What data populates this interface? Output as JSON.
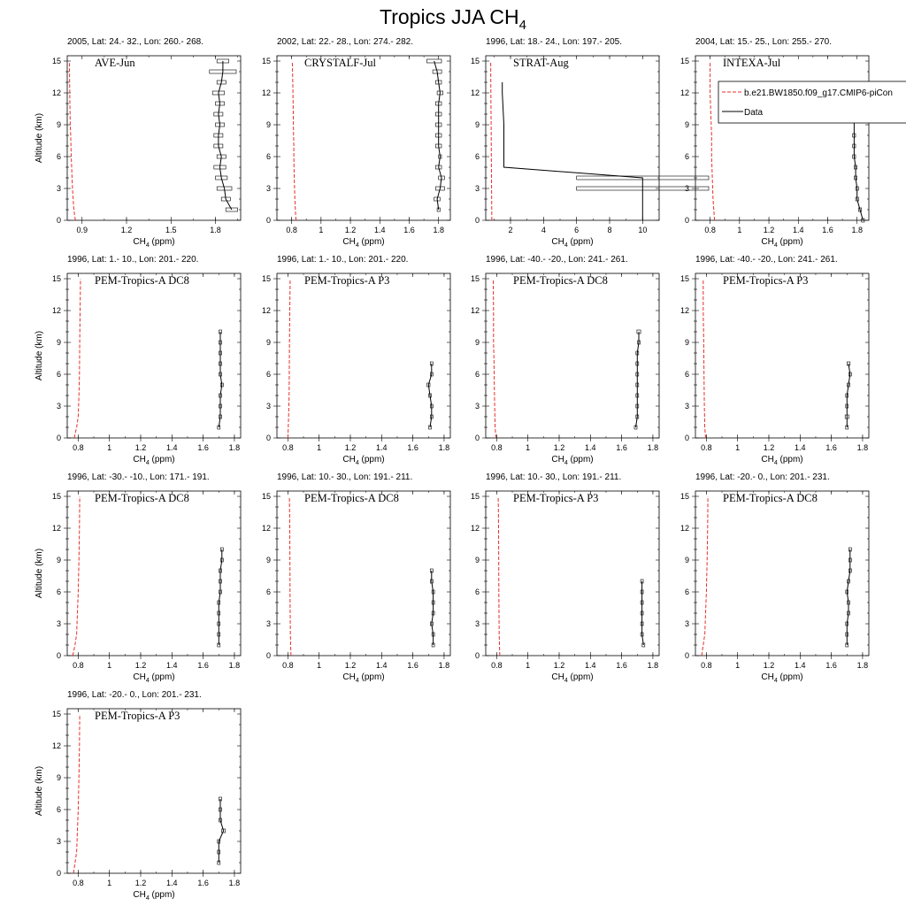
{
  "figure": {
    "title_main": "Tropics JJA CH",
    "title_sub": "4",
    "x_label_main": "CH",
    "x_label_sub": "4",
    "x_label_unit": " (ppm)",
    "y_label": "Altitude (km)",
    "model_color": "#e8302a",
    "data_color": "#000000"
  },
  "legend": {
    "model_label": "b.e21.BW1850.f09_g17.CMIP6-piCon",
    "data_label": "Data"
  },
  "chart_data": [
    {
      "type": "line",
      "header": "2005, Lat: 24.- 32., Lon: 260.- 268.",
      "campaign": "AVE-Jun",
      "xlim": [
        0.8,
        1.97
      ],
      "xticks": [
        0.9,
        1.2,
        1.5,
        1.8
      ],
      "xtick_labels": [
        "0.9",
        "1.2",
        "1.5",
        "1.8"
      ],
      "ylim": [
        0,
        15.5
      ],
      "yticks": [
        0,
        3,
        6,
        9,
        12,
        15
      ],
      "model": {
        "x": [
          0.855,
          0.845,
          0.84,
          0.835,
          0.832,
          0.83,
          0.827,
          0.825,
          0.823,
          0.82,
          0.818,
          0.816,
          0.815
        ],
        "y": [
          0,
          1,
          2,
          3,
          4,
          5,
          6,
          7,
          8,
          9,
          11,
          13,
          15
        ]
      },
      "data": {
        "x": [
          1.91,
          1.87,
          1.86,
          1.84,
          1.83,
          1.84,
          1.82,
          1.82,
          1.83,
          1.82,
          1.83,
          1.82,
          1.84,
          1.85,
          1.85
        ],
        "y": [
          1,
          2,
          3,
          4,
          5,
          6,
          7,
          8,
          9,
          10,
          11,
          12,
          13,
          14,
          15
        ],
        "err": [
          0.04,
          0.03,
          0.05,
          0.04,
          0.04,
          0.03,
          0.03,
          0.03,
          0.03,
          0.03,
          0.03,
          0.04,
          0.03,
          0.09,
          0.04
        ]
      }
    },
    {
      "type": "line",
      "header": "2002, Lat: 22.- 28., Lon: 274.- 282.",
      "campaign": "CRYSTALF-Jul",
      "xlim": [
        0.7,
        1.88
      ],
      "xticks": [
        0.8,
        1.0,
        1.2,
        1.4,
        1.6,
        1.8
      ],
      "xtick_labels": [
        "0.8",
        "1",
        "1.2",
        "1.4",
        "1.6",
        "1.8"
      ],
      "ylim": [
        0,
        15.5
      ],
      "yticks": [
        0,
        3,
        6,
        9,
        12,
        15
      ],
      "model": {
        "x": [
          0.83,
          0.825,
          0.822,
          0.82,
          0.818,
          0.816,
          0.815,
          0.815,
          0.813,
          0.812,
          0.81,
          0.808,
          0.805
        ],
        "y": [
          0,
          1,
          2,
          3,
          4,
          5,
          6,
          7,
          8,
          9,
          11,
          13,
          15
        ]
      },
      "data": {
        "x": [
          1.8,
          1.79,
          1.81,
          1.82,
          1.8,
          1.81,
          1.8,
          1.8,
          1.8,
          1.8,
          1.8,
          1.81,
          1.8,
          1.79,
          1.77
        ],
        "y": [
          1,
          2,
          3,
          4,
          5,
          6,
          7,
          8,
          9,
          10,
          11,
          12,
          13,
          14,
          15
        ],
        "err": [
          0.01,
          0.02,
          0.03,
          0.02,
          0.02,
          0.01,
          0.02,
          0.02,
          0.02,
          0.02,
          0.02,
          0.02,
          0.02,
          0.03,
          0.05
        ]
      }
    },
    {
      "type": "line",
      "header": "1996, Lat: 18.- 24., Lon: 197.- 205.",
      "campaign": "STRAT-Aug",
      "xlim": [
        0.5,
        11.0
      ],
      "xticks": [
        2,
        4,
        6,
        8,
        10
      ],
      "xtick_labels": [
        "2",
        "4",
        "6",
        "8",
        "10"
      ],
      "ylim": [
        0,
        15.5
      ],
      "yticks": [
        0,
        3,
        6,
        9,
        12,
        15
      ],
      "model": {
        "x": [
          0.87,
          0.86,
          0.85,
          0.84,
          0.83,
          0.82,
          0.81,
          0.8
        ],
        "y": [
          0,
          2,
          4,
          6,
          8,
          10,
          12,
          15
        ]
      },
      "data": {
        "x": [
          10.0,
          10.0,
          10.0,
          1.6,
          1.6,
          1.5,
          1.5
        ],
        "y": [
          0,
          3,
          4,
          5,
          9,
          12,
          13
        ],
        "err": [
          0,
          4.0,
          4.0,
          0,
          0,
          0,
          0
        ]
      }
    },
    {
      "type": "line",
      "header": "2004, Lat: 15.- 25., Lon: 255.- 270.",
      "campaign": "INTEXA-Jul",
      "xlim": [
        0.7,
        1.88
      ],
      "xticks": [
        0.8,
        1.0,
        1.2,
        1.4,
        1.6,
        1.8
      ],
      "xtick_labels": [
        "0.8",
        "1",
        "1.2",
        "1.4",
        "1.6",
        "1.8"
      ],
      "ylim": [
        0,
        15.5
      ],
      "yticks": [
        0,
        3,
        6,
        9,
        12,
        15
      ],
      "model": {
        "x": [
          0.83,
          0.82,
          0.815,
          0.81,
          0.81,
          0.805,
          0.8,
          0.8
        ],
        "y": [
          0,
          2,
          4,
          6,
          8,
          10,
          12,
          15
        ]
      },
      "data": {
        "x": [
          1.84,
          1.82,
          1.8,
          1.8,
          1.79,
          1.79,
          1.78,
          1.78,
          1.78,
          1.78
        ],
        "y": [
          0,
          1,
          2,
          3,
          4,
          5,
          6,
          7,
          8,
          10
        ],
        "err": [
          0.01,
          0.01,
          0.01,
          0.01,
          0.01,
          0.01,
          0.01,
          0.01,
          0.01,
          0.01
        ]
      }
    },
    {
      "type": "line",
      "header": "1996, Lat: 1.- 10., Lon: 201.- 220.",
      "campaign": "PEM-Tropics-A DC8",
      "xlim": [
        0.73,
        1.84
      ],
      "xticks": [
        0.8,
        1.0,
        1.2,
        1.4,
        1.6,
        1.8
      ],
      "xtick_labels": [
        "0.8",
        "1",
        "1.2",
        "1.4",
        "1.6",
        "1.8"
      ],
      "ylim": [
        0,
        15.5
      ],
      "yticks": [
        0,
        3,
        6,
        9,
        12,
        15
      ],
      "model": {
        "x": [
          0.775,
          0.79,
          0.8,
          0.805,
          0.808,
          0.81,
          0.812,
          0.815
        ],
        "y": [
          0,
          1,
          2,
          4,
          6,
          9,
          12,
          15
        ]
      },
      "data": {
        "x": [
          1.7,
          1.71,
          1.71,
          1.71,
          1.72,
          1.71,
          1.71,
          1.71,
          1.71,
          1.71
        ],
        "y": [
          1,
          2,
          3,
          4,
          5,
          6,
          7,
          8,
          9,
          10
        ],
        "err": [
          0.005,
          0.005,
          0.005,
          0.005,
          0.005,
          0.005,
          0.005,
          0.005,
          0.008,
          0.005
        ]
      }
    },
    {
      "type": "line",
      "header": "1996, Lat: 1.- 10., Lon: 201.- 220.",
      "campaign": "PEM-Tropics-A P3",
      "xlim": [
        0.73,
        1.84
      ],
      "xticks": [
        0.8,
        1.0,
        1.2,
        1.4,
        1.6,
        1.8
      ],
      "xtick_labels": [
        "0.8",
        "1",
        "1.2",
        "1.4",
        "1.6",
        "1.8"
      ],
      "ylim": [
        0,
        15.5
      ],
      "yticks": [
        0,
        3,
        6,
        9,
        12,
        15
      ],
      "model": {
        "x": [
          0.8,
          0.805,
          0.808,
          0.81,
          0.812,
          0.815
        ],
        "y": [
          0,
          2,
          4,
          8,
          12,
          15
        ]
      },
      "data": {
        "x": [
          1.71,
          1.72,
          1.72,
          1.71,
          1.7,
          1.72,
          1.72
        ],
        "y": [
          1,
          2,
          3,
          4,
          5,
          6,
          7
        ],
        "err": [
          0.005,
          0.005,
          0.005,
          0.005,
          0.01,
          0.008,
          0.005
        ]
      }
    },
    {
      "type": "line",
      "header": "1996, Lat: -40.- -20., Lon: 241.- 261.",
      "campaign": "PEM-Tropics-A DC8",
      "xlim": [
        0.73,
        1.84
      ],
      "xticks": [
        0.8,
        1.0,
        1.2,
        1.4,
        1.6,
        1.8
      ],
      "xtick_labels": [
        "0.8",
        "1",
        "1.2",
        "1.4",
        "1.6",
        "1.8"
      ],
      "ylim": [
        0,
        15.5
      ],
      "yticks": [
        0,
        3,
        6,
        9,
        12,
        15
      ],
      "model": {
        "x": [
          0.795,
          0.79,
          0.787,
          0.785,
          0.783,
          0.78,
          0.78,
          0.778
        ],
        "y": [
          0,
          1,
          3,
          5,
          7,
          9,
          12,
          15
        ]
      },
      "data": {
        "x": [
          1.69,
          1.7,
          1.7,
          1.7,
          1.7,
          1.7,
          1.7,
          1.7,
          1.71,
          1.71
        ],
        "y": [
          1,
          2,
          3,
          4,
          5,
          6,
          7,
          8,
          9,
          10
        ],
        "err": [
          0.005,
          0.005,
          0.005,
          0.005,
          0.005,
          0.005,
          0.005,
          0.005,
          0.005,
          0.012
        ]
      }
    },
    {
      "type": "line",
      "header": "1996, Lat: -40.- -20., Lon: 241.- 261.",
      "campaign": "PEM-Tropics-A P3",
      "xlim": [
        0.73,
        1.84
      ],
      "xticks": [
        0.8,
        1.0,
        1.2,
        1.4,
        1.6,
        1.8
      ],
      "xtick_labels": [
        "0.8",
        "1",
        "1.2",
        "1.4",
        "1.6",
        "1.8"
      ],
      "ylim": [
        0,
        15.5
      ],
      "yticks": [
        0,
        3,
        6,
        9,
        12,
        15
      ],
      "model": {
        "x": [
          0.795,
          0.79,
          0.787,
          0.785,
          0.783,
          0.78,
          0.78
        ],
        "y": [
          0,
          1,
          3,
          6,
          9,
          12,
          15
        ]
      },
      "data": {
        "x": [
          1.7,
          1.7,
          1.7,
          1.7,
          1.71,
          1.72,
          1.71
        ],
        "y": [
          1,
          2,
          3,
          4,
          5,
          6,
          7
        ],
        "err": [
          0.005,
          0.012,
          0.005,
          0.005,
          0.005,
          0.005,
          0.01
        ]
      }
    },
    {
      "type": "line",
      "header": "1996, Lat: -30.- -10., Lon: 171.- 191.",
      "campaign": "PEM-Tropics-A DC8",
      "xlim": [
        0.73,
        1.84
      ],
      "xticks": [
        0.8,
        1.0,
        1.2,
        1.4,
        1.6,
        1.8
      ],
      "xtick_labels": [
        "0.8",
        "1",
        "1.2",
        "1.4",
        "1.6",
        "1.8"
      ],
      "ylim": [
        0,
        15.5
      ],
      "yticks": [
        0,
        3,
        6,
        9,
        12,
        15
      ],
      "model": {
        "x": [
          0.765,
          0.78,
          0.79,
          0.795,
          0.8,
          0.805,
          0.808,
          0.81
        ],
        "y": [
          0,
          1,
          2,
          4,
          6,
          9,
          12,
          15
        ]
      },
      "data": {
        "x": [
          1.7,
          1.7,
          1.7,
          1.7,
          1.7,
          1.71,
          1.71,
          1.71,
          1.72,
          1.72
        ],
        "y": [
          1,
          2,
          3,
          4,
          5,
          6,
          7,
          8,
          9,
          10
        ],
        "err": [
          0.005,
          0.005,
          0.005,
          0.005,
          0.005,
          0.005,
          0.005,
          0.005,
          0.005,
          0.005
        ]
      }
    },
    {
      "type": "line",
      "header": "1996, Lat: 10.- 30., Lon: 191.- 211.",
      "campaign": "PEM-Tropics-A DC8",
      "xlim": [
        0.73,
        1.84
      ],
      "xticks": [
        0.8,
        1.0,
        1.2,
        1.4,
        1.6,
        1.8
      ],
      "xtick_labels": [
        "0.8",
        "1",
        "1.2",
        "1.4",
        "1.6",
        "1.8"
      ],
      "ylim": [
        0,
        15.5
      ],
      "yticks": [
        0,
        3,
        6,
        9,
        12,
        15
      ],
      "model": {
        "x": [
          0.82,
          0.818,
          0.816,
          0.815,
          0.814,
          0.813,
          0.812,
          0.81
        ],
        "y": [
          0,
          1,
          2,
          4,
          6,
          9,
          12,
          15
        ]
      },
      "data": {
        "x": [
          1.73,
          1.73,
          1.72,
          1.73,
          1.73,
          1.73,
          1.72,
          1.72
        ],
        "y": [
          1,
          2,
          3,
          4,
          5,
          6,
          7,
          8
        ],
        "err": [
          0.005,
          0.005,
          0.005,
          0.005,
          0.005,
          0.005,
          0.005,
          0.005
        ]
      }
    },
    {
      "type": "line",
      "header": "1996, Lat: 10.- 30., Lon: 191.- 211.",
      "campaign": "PEM-Tropics-A P3",
      "xlim": [
        0.73,
        1.84
      ],
      "xticks": [
        0.8,
        1.0,
        1.2,
        1.4,
        1.6,
        1.8
      ],
      "xtick_labels": [
        "0.8",
        "1",
        "1.2",
        "1.4",
        "1.6",
        "1.8"
      ],
      "ylim": [
        0,
        15.5
      ],
      "yticks": [
        0,
        3,
        6,
        9,
        12,
        15
      ],
      "model": {
        "x": [
          0.82,
          0.818,
          0.816,
          0.815,
          0.814,
          0.813,
          0.812,
          0.81
        ],
        "y": [
          0,
          1,
          2,
          4,
          6,
          9,
          12,
          15
        ]
      },
      "data": {
        "x": [
          1.74,
          1.73,
          1.73,
          1.73,
          1.73,
          1.73,
          1.73
        ],
        "y": [
          1,
          2,
          3,
          4,
          5,
          6,
          7
        ],
        "err": [
          0.005,
          0.005,
          0.005,
          0.005,
          0.005,
          0.005,
          0.005
        ]
      }
    },
    {
      "type": "line",
      "header": "1996, Lat: -20.- 0., Lon: 201.- 231.",
      "campaign": "PEM-Tropics-A DC8",
      "xlim": [
        0.73,
        1.84
      ],
      "xticks": [
        0.8,
        1.0,
        1.2,
        1.4,
        1.6,
        1.8
      ],
      "xtick_labels": [
        "0.8",
        "1",
        "1.2",
        "1.4",
        "1.6",
        "1.8"
      ],
      "ylim": [
        0,
        15.5
      ],
      "yticks": [
        0,
        3,
        6,
        9,
        12,
        15
      ],
      "model": {
        "x": [
          0.77,
          0.78,
          0.79,
          0.795,
          0.8,
          0.805,
          0.808,
          0.81
        ],
        "y": [
          0,
          1,
          2,
          4,
          6,
          9,
          12,
          15
        ]
      },
      "data": {
        "x": [
          1.7,
          1.7,
          1.7,
          1.71,
          1.71,
          1.7,
          1.71,
          1.72,
          1.72,
          1.72
        ],
        "y": [
          1,
          2,
          3,
          4,
          5,
          6,
          7,
          8,
          9,
          10
        ],
        "err": [
          0.005,
          0.005,
          0.005,
          0.005,
          0.005,
          0.005,
          0.005,
          0.005,
          0.005,
          0.005
        ]
      }
    },
    {
      "type": "line",
      "header": "1996, Lat: -20.- 0., Lon: 201.- 231.",
      "campaign": "PEM-Tropics-A P3",
      "xlim": [
        0.73,
        1.84
      ],
      "xticks": [
        0.8,
        1.0,
        1.2,
        1.4,
        1.6,
        1.8
      ],
      "xtick_labels": [
        "0.8",
        "1",
        "1.2",
        "1.4",
        "1.6",
        "1.8"
      ],
      "ylim": [
        0,
        15.5
      ],
      "yticks": [
        0,
        3,
        6,
        9,
        12,
        15
      ],
      "model": {
        "x": [
          0.77,
          0.78,
          0.79,
          0.795,
          0.8,
          0.805,
          0.808,
          0.81
        ],
        "y": [
          0,
          1,
          2,
          4,
          6,
          9,
          12,
          15
        ]
      },
      "data": {
        "x": [
          1.7,
          1.7,
          1.7,
          1.73,
          1.71,
          1.71,
          1.71
        ],
        "y": [
          1,
          2,
          3,
          4,
          5,
          6,
          7
        ],
        "err": [
          0.005,
          0.005,
          0.005,
          0.012,
          0.005,
          0.005,
          0.005
        ]
      }
    }
  ]
}
